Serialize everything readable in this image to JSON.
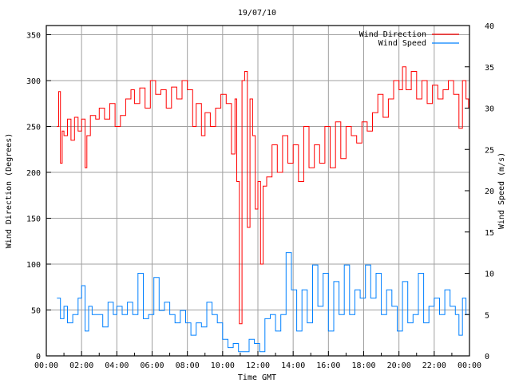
{
  "chart_data": {
    "type": "line",
    "title": "19/07/10",
    "xlabel": "Time GMT",
    "ylabel": "Wind Direction (Degrees)",
    "y2label": "Wind Speed (m/s)",
    "xlim": [
      0,
      24
    ],
    "ylim": [
      0,
      360
    ],
    "y2lim": [
      0,
      40
    ],
    "grid": true,
    "legend_position": "top-right",
    "x_tick_labels": [
      "00:00",
      "02:00",
      "04:00",
      "06:00",
      "08:00",
      "10:00",
      "12:00",
      "14:00",
      "16:00",
      "18:00",
      "20:00",
      "22:00",
      "00:00"
    ],
    "y_tick_labels": [
      "0",
      "50",
      "100",
      "150",
      "200",
      "250",
      "300",
      "350"
    ],
    "y2_tick_labels": [
      "0",
      "5",
      "10",
      "15",
      "20",
      "25",
      "30",
      "35",
      "40"
    ],
    "series": [
      {
        "name": "Wind Direction",
        "axis": "left",
        "color": "#ff0000",
        "x": [
          0.6,
          0.7,
          0.8,
          0.9,
          1.0,
          1.2,
          1.4,
          1.6,
          1.8,
          2.0,
          2.2,
          2.3,
          2.5,
          2.8,
          3.0,
          3.3,
          3.6,
          3.9,
          4.2,
          4.5,
          4.8,
          5.0,
          5.3,
          5.6,
          5.9,
          6.2,
          6.5,
          6.8,
          7.1,
          7.4,
          7.7,
          8.0,
          8.3,
          8.5,
          8.8,
          9.0,
          9.3,
          9.6,
          9.9,
          10.2,
          10.5,
          10.7,
          10.8,
          10.95,
          11.1,
          11.25,
          11.4,
          11.55,
          11.7,
          11.85,
          12.0,
          12.15,
          12.3,
          12.5,
          12.8,
          13.1,
          13.4,
          13.7,
          14.0,
          14.3,
          14.6,
          14.9,
          15.2,
          15.5,
          15.8,
          16.1,
          16.4,
          16.7,
          17.0,
          17.3,
          17.6,
          17.9,
          18.2,
          18.5,
          18.8,
          19.1,
          19.4,
          19.7,
          20.0,
          20.2,
          20.4,
          20.7,
          21.0,
          21.3,
          21.6,
          21.9,
          22.2,
          22.5,
          22.8,
          23.1,
          23.4,
          23.6,
          23.8,
          23.95
        ],
        "values": [
          250,
          288,
          210,
          245,
          240,
          258,
          235,
          260,
          245,
          258,
          205,
          240,
          262,
          258,
          270,
          258,
          275,
          250,
          262,
          280,
          290,
          275,
          292,
          270,
          300,
          285,
          290,
          270,
          293,
          280,
          300,
          290,
          250,
          275,
          240,
          265,
          250,
          270,
          285,
          275,
          220,
          280,
          190,
          35,
          300,
          310,
          140,
          280,
          240,
          160,
          190,
          100,
          185,
          195,
          230,
          200,
          240,
          210,
          230,
          190,
          250,
          205,
          230,
          210,
          250,
          205,
          255,
          215,
          250,
          240,
          232,
          255,
          245,
          265,
          285,
          260,
          280,
          300,
          290,
          315,
          290,
          310,
          280,
          300,
          275,
          295,
          280,
          290,
          300,
          285,
          248,
          300,
          280,
          270
        ]
      },
      {
        "name": "Wind Speed",
        "axis": "right",
        "color": "#0080ff",
        "x": [
          0.6,
          0.8,
          1.0,
          1.2,
          1.5,
          1.8,
          2.0,
          2.2,
          2.4,
          2.6,
          2.9,
          3.2,
          3.5,
          3.8,
          4.0,
          4.3,
          4.6,
          4.9,
          5.2,
          5.5,
          5.8,
          6.1,
          6.4,
          6.7,
          7.0,
          7.3,
          7.6,
          7.9,
          8.2,
          8.5,
          8.8,
          9.1,
          9.4,
          9.7,
          10.0,
          10.3,
          10.6,
          10.9,
          11.2,
          11.5,
          11.8,
          12.1,
          12.4,
          12.7,
          13.0,
          13.3,
          13.6,
          13.9,
          14.2,
          14.5,
          14.8,
          15.1,
          15.4,
          15.7,
          16.0,
          16.3,
          16.6,
          16.9,
          17.2,
          17.5,
          17.8,
          18.1,
          18.4,
          18.7,
          19.0,
          19.3,
          19.6,
          19.9,
          20.2,
          20.5,
          20.8,
          21.1,
          21.4,
          21.7,
          22.0,
          22.3,
          22.6,
          22.9,
          23.2,
          23.4,
          23.6,
          23.8,
          23.95
        ],
        "values": [
          7,
          4.5,
          6,
          4,
          5,
          7,
          8.5,
          3,
          6,
          5,
          5,
          3.5,
          6.5,
          5,
          6,
          5,
          6.5,
          5,
          10,
          4.5,
          5,
          9.5,
          5.5,
          6.5,
          5,
          4,
          5.5,
          4,
          2.5,
          4,
          3.5,
          6.5,
          5,
          4,
          2,
          1,
          1.5,
          0.5,
          0.5,
          2,
          1.5,
          0.5,
          4.5,
          5,
          3,
          5,
          12.5,
          8,
          3,
          8,
          4,
          11,
          6,
          10,
          3,
          9,
          5,
          11,
          5,
          8,
          7,
          11,
          7,
          10,
          5,
          8,
          6,
          3,
          9,
          4,
          5,
          10,
          4,
          6,
          7,
          5,
          8,
          6,
          5,
          2.5,
          7,
          5,
          5
        ]
      }
    ]
  }
}
